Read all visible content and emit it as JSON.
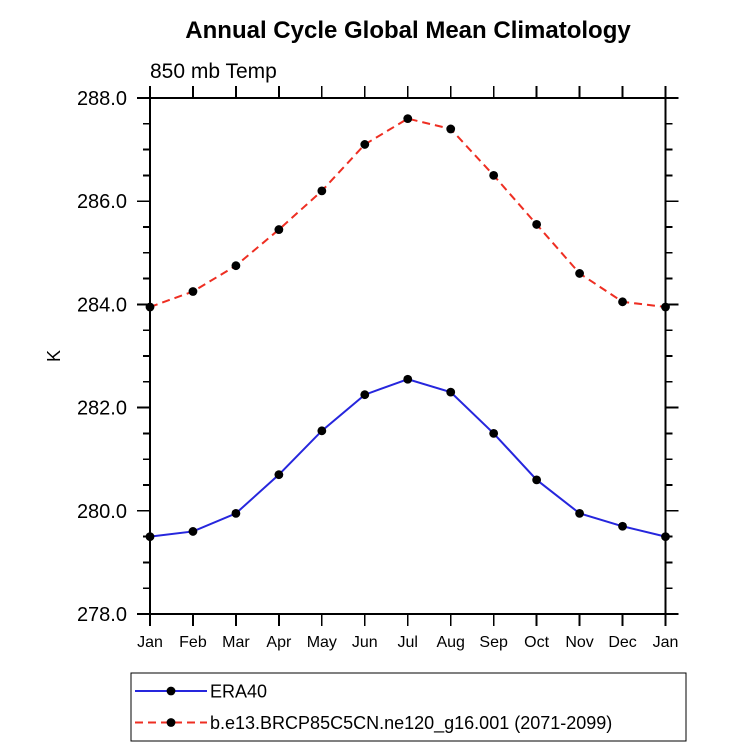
{
  "title": "Annual Cycle Global Mean Climatology",
  "subtitle": "850 mb Temp",
  "ylabel": "K",
  "legend": {
    "position": "bottom-left",
    "items": [
      {
        "label": "ERA40",
        "color": "#2626dd",
        "line_style": "solid",
        "marker": "filled-circle",
        "marker_color": "#000000"
      },
      {
        "label": "b.e13.BRCP85C5CN.ne120_g16.001 (2071-2099)",
        "color": "#ee2e22",
        "line_style": "dashed",
        "marker": "filled-circle",
        "marker_color": "#000000"
      }
    ]
  },
  "chart_data": {
    "type": "line",
    "title": "Annual Cycle Global Mean Climatology",
    "subtitle": "850 mb Temp",
    "xlabel": "",
    "ylabel": "K",
    "categories": [
      "Jan",
      "Feb",
      "Mar",
      "Apr",
      "May",
      "Jun",
      "Jul",
      "Aug",
      "Sep",
      "Oct",
      "Nov",
      "Dec",
      "Jan"
    ],
    "series": [
      {
        "name": "ERA40",
        "color": "#2626dd",
        "line_style": "solid",
        "marker": "filled-circle",
        "marker_color": "#000000",
        "values": [
          279.5,
          279.6,
          279.95,
          280.7,
          281.55,
          282.25,
          282.55,
          282.3,
          281.5,
          280.6,
          279.95,
          279.7,
          279.5
        ]
      },
      {
        "name": "b.e13.BRCP85C5CN.ne120_g16.001 (2071-2099)",
        "color": "#ee2e22",
        "line_style": "dashed",
        "marker": "filled-circle",
        "marker_color": "#000000",
        "values": [
          283.95,
          284.25,
          284.75,
          285.45,
          286.2,
          287.1,
          287.6,
          287.4,
          286.5,
          285.55,
          284.6,
          284.05,
          283.95
        ]
      }
    ],
    "ylim": [
      278.0,
      288.0
    ],
    "ytick_major_interval": 2.0,
    "ytick_minor_interval": 0.5,
    "ytick_labels": [
      "278.0",
      "280.0",
      "282.0",
      "284.0",
      "286.0",
      "288.0"
    ],
    "grid": false,
    "frame": "box-with-outward-ticks",
    "legend_position": "bottom-left"
  }
}
